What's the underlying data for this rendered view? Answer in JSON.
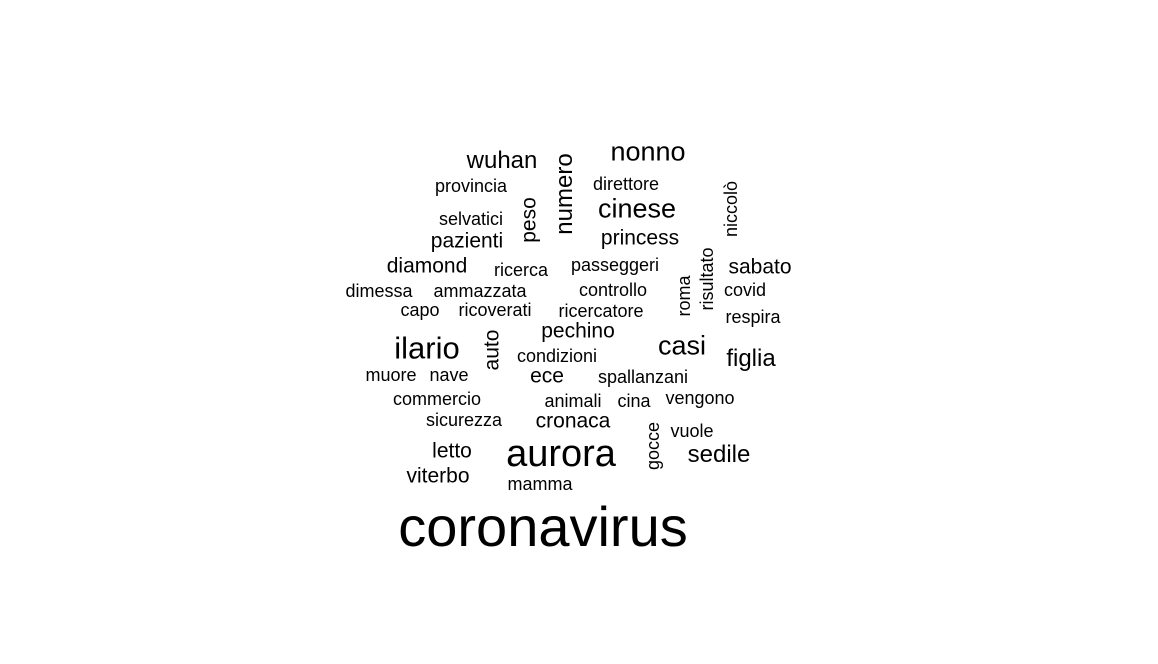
{
  "background_color": "#ffffff",
  "text_color": "#000000",
  "words": [
    {
      "text": "coronavirus",
      "rotated": false
    },
    {
      "text": "aurora",
      "rotated": false
    },
    {
      "text": "ilario",
      "rotated": false
    },
    {
      "text": "nonno",
      "rotated": false
    },
    {
      "text": "cinese",
      "rotated": false
    },
    {
      "text": "casi",
      "rotated": false
    },
    {
      "text": "wuhan",
      "rotated": false
    },
    {
      "text": "figlia",
      "rotated": false
    },
    {
      "text": "sedile",
      "rotated": false
    },
    {
      "text": "numero",
      "rotated": true
    },
    {
      "text": "princess",
      "rotated": false
    },
    {
      "text": "diamond",
      "rotated": false
    },
    {
      "text": "pazienti",
      "rotated": false
    },
    {
      "text": "sabato",
      "rotated": false
    },
    {
      "text": "pechino",
      "rotated": false
    },
    {
      "text": "ece",
      "rotated": false
    },
    {
      "text": "cronaca",
      "rotated": false
    },
    {
      "text": "letto",
      "rotated": false
    },
    {
      "text": "viterbo",
      "rotated": false
    },
    {
      "text": "peso",
      "rotated": true
    },
    {
      "text": "auto",
      "rotated": true
    },
    {
      "text": "provincia",
      "rotated": false
    },
    {
      "text": "direttore",
      "rotated": false
    },
    {
      "text": "niccolò",
      "rotated": true
    },
    {
      "text": "selvatici",
      "rotated": false
    },
    {
      "text": "ricerca",
      "rotated": false
    },
    {
      "text": "passeggeri",
      "rotated": false
    },
    {
      "text": "risultato",
      "rotated": true
    },
    {
      "text": "roma",
      "rotated": true
    },
    {
      "text": "dimessa",
      "rotated": false
    },
    {
      "text": "ammazzata",
      "rotated": false
    },
    {
      "text": "controllo",
      "rotated": false
    },
    {
      "text": "covid",
      "rotated": false
    },
    {
      "text": "capo",
      "rotated": false
    },
    {
      "text": "ricoverati",
      "rotated": false
    },
    {
      "text": "ricercatore",
      "rotated": false
    },
    {
      "text": "respira",
      "rotated": false
    },
    {
      "text": "condizioni",
      "rotated": false
    },
    {
      "text": "muore",
      "rotated": false
    },
    {
      "text": "nave",
      "rotated": false
    },
    {
      "text": "spallanzani",
      "rotated": false
    },
    {
      "text": "commercio",
      "rotated": false
    },
    {
      "text": "animali",
      "rotated": false
    },
    {
      "text": "cina",
      "rotated": false
    },
    {
      "text": "vengono",
      "rotated": false
    },
    {
      "text": "sicurezza",
      "rotated": false
    },
    {
      "text": "vuole",
      "rotated": false
    },
    {
      "text": "gocce",
      "rotated": true
    },
    {
      "text": "mamma",
      "rotated": false
    }
  ]
}
